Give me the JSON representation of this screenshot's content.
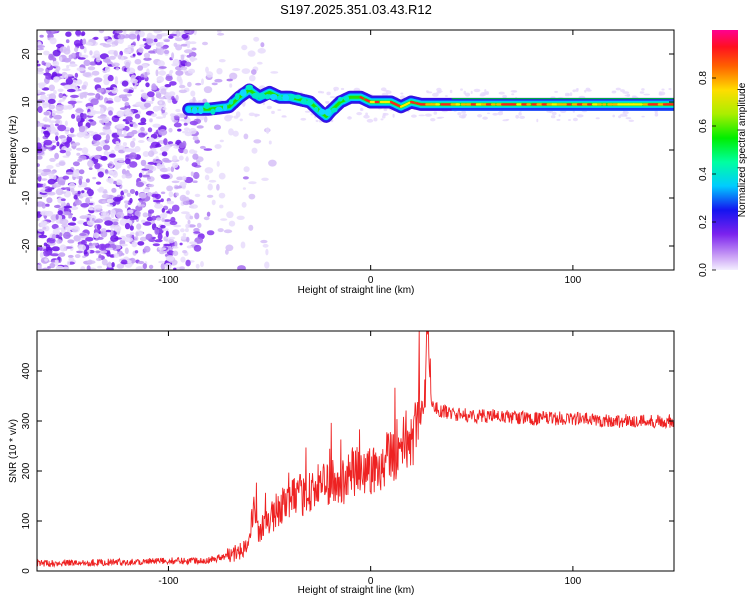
{
  "figure_title": "S197.2025.351.03.43.R12",
  "chart_data": [
    {
      "type": "heatmap",
      "xlabel": "Height of straight line (km)",
      "ylabel": "Frequency (Hz)",
      "xlim": [
        -165,
        150
      ],
      "ylim": [
        -25,
        25
      ],
      "xticks": [
        -100,
        0,
        100
      ],
      "yticks": [
        -20,
        -10,
        0,
        10,
        20
      ],
      "colorbar": {
        "label": "Normalized spectral amplitude",
        "range": [
          0,
          1
        ],
        "ticks": [
          0.0,
          0.2,
          0.4,
          0.6,
          0.8
        ],
        "position": "right"
      },
      "ridge": {
        "x": [
          -90,
          -80,
          -70,
          -65,
          -60,
          -55,
          -50,
          -45,
          -40,
          -35,
          -30,
          -25,
          -22,
          -20,
          -15,
          -10,
          -5,
          0,
          10,
          15,
          20,
          25,
          30,
          40,
          60,
          80,
          100,
          120,
          150
        ],
        "y": [
          8.5,
          8.5,
          9,
          11,
          12.5,
          11,
          12,
          11,
          11,
          10.5,
          10,
          8,
          7,
          8,
          10,
          11,
          11,
          10,
          10,
          9,
          10,
          9.5,
          9.5,
          9.5,
          9.5,
          9.5,
          9.5,
          9.5,
          9.5
        ]
      }
    },
    {
      "type": "line",
      "xlabel": "Height of straight line (km)",
      "ylabel": "SNR (10 * v/v)",
      "xlim": [
        -165,
        150
      ],
      "ylim": [
        0,
        480
      ],
      "xticks": [
        -100,
        0,
        100
      ],
      "yticks": [
        0,
        100,
        200,
        300,
        400
      ],
      "series": [
        {
          "color": "#ee2222",
          "x": [
            -165,
            -140,
            -120,
            -100,
            -80,
            -70,
            -65,
            -60,
            -58,
            -55,
            -50,
            -45,
            -40,
            -35,
            -30,
            -25,
            -20,
            -15,
            -10,
            -5,
            0,
            5,
            10,
            15,
            20,
            22,
            25,
            27,
            28,
            30,
            35,
            40,
            50,
            60,
            80,
            100,
            120,
            140,
            150
          ],
          "y": [
            15,
            17,
            18,
            20,
            22,
            30,
            40,
            60,
            120,
            80,
            100,
            130,
            140,
            150,
            160,
            170,
            180,
            170,
            195,
            200,
            200,
            215,
            240,
            250,
            270,
            290,
            310,
            330,
            480,
            330,
            320,
            315,
            310,
            310,
            305,
            305,
            300,
            300,
            300
          ]
        }
      ]
    }
  ]
}
